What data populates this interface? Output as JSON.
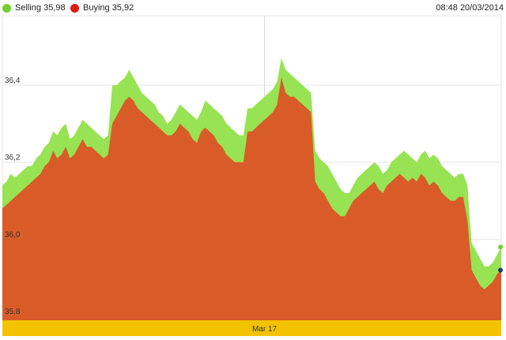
{
  "header": {
    "selling_label": "Selling 35,98",
    "buying_label": "Buying 35,92",
    "timestamp": "08:48 20/03/2014"
  },
  "colors": {
    "selling": "#97e353",
    "buying": "#d95c28",
    "selling_dot": "#6fd12f",
    "buying_dot": "#e01a10",
    "band": "#f3c300",
    "grid": "#e6e6e6",
    "last_selling_marker": "#6fd12f",
    "last_buying_marker": "#1f3a7a"
  },
  "chart_data": {
    "type": "area",
    "title": "",
    "xlabel": "",
    "ylabel": "",
    "ylim": [
      35.79,
      36.58
    ],
    "y_ticks": [
      35.8,
      36.0,
      36.2,
      36.4
    ],
    "y_tick_labels": [
      "35,8",
      "36,0",
      "36,2",
      "36,4"
    ],
    "x_band_labels": [
      "Mar 17"
    ],
    "x_band_label_index": 62,
    "grid": true,
    "legend_position": "top-left",
    "series": [
      {
        "name": "Selling",
        "values": [
          36.14,
          36.15,
          36.17,
          36.16,
          36.17,
          36.18,
          36.19,
          36.19,
          36.21,
          36.22,
          36.24,
          36.25,
          36.28,
          36.27,
          36.29,
          36.3,
          36.26,
          36.27,
          36.29,
          36.31,
          36.3,
          36.29,
          36.28,
          36.27,
          36.26,
          36.27,
          36.4,
          36.4,
          36.41,
          36.42,
          36.44,
          36.42,
          36.4,
          36.38,
          36.37,
          36.36,
          36.35,
          36.33,
          36.32,
          36.3,
          36.31,
          36.33,
          36.35,
          36.34,
          36.33,
          36.32,
          36.31,
          36.33,
          36.36,
          36.35,
          36.34,
          36.33,
          36.32,
          36.3,
          36.29,
          36.28,
          36.27,
          36.27,
          36.34,
          36.34,
          36.35,
          36.36,
          36.37,
          36.38,
          36.39,
          36.41,
          36.47,
          36.44,
          36.43,
          36.42,
          36.41,
          36.4,
          36.39,
          36.38,
          36.23,
          36.21,
          36.2,
          36.19,
          36.17,
          36.15,
          36.13,
          36.12,
          36.12,
          36.14,
          36.16,
          36.17,
          36.18,
          36.19,
          36.2,
          36.19,
          36.17,
          36.18,
          36.2,
          36.21,
          36.22,
          36.23,
          36.22,
          36.21,
          36.2,
          36.22,
          36.23,
          36.21,
          36.22,
          36.21,
          36.19,
          36.18,
          36.17,
          36.16,
          36.17,
          36.17,
          36.14,
          35.99,
          35.97,
          35.95,
          35.93,
          35.93,
          35.94,
          35.96,
          35.98
        ]
      },
      {
        "name": "Buying",
        "values": [
          36.08,
          36.09,
          36.1,
          36.11,
          36.12,
          36.13,
          36.14,
          36.15,
          36.16,
          36.17,
          36.19,
          36.2,
          36.23,
          36.21,
          36.22,
          36.24,
          36.21,
          36.22,
          36.24,
          36.26,
          36.24,
          36.24,
          36.23,
          36.22,
          36.21,
          36.22,
          36.3,
          36.32,
          36.34,
          36.36,
          36.37,
          36.36,
          36.34,
          36.33,
          36.32,
          36.31,
          36.3,
          36.29,
          36.28,
          36.27,
          36.27,
          36.28,
          36.3,
          36.29,
          36.28,
          36.26,
          36.25,
          36.28,
          36.29,
          36.28,
          36.27,
          36.25,
          36.24,
          36.22,
          36.21,
          36.2,
          36.2,
          36.2,
          36.28,
          36.28,
          36.29,
          36.3,
          36.31,
          36.32,
          36.33,
          36.35,
          36.42,
          36.38,
          36.37,
          36.37,
          36.36,
          36.35,
          36.34,
          36.33,
          36.15,
          36.13,
          36.12,
          36.1,
          36.08,
          36.07,
          36.06,
          36.06,
          36.08,
          36.1,
          36.11,
          36.12,
          36.13,
          36.14,
          36.15,
          36.13,
          36.12,
          36.14,
          36.15,
          36.16,
          36.17,
          36.16,
          36.15,
          36.16,
          36.15,
          36.17,
          36.16,
          36.14,
          36.15,
          36.14,
          36.12,
          36.11,
          36.1,
          36.1,
          36.11,
          36.11,
          36.05,
          35.92,
          35.9,
          35.88,
          35.87,
          35.88,
          35.89,
          35.91,
          35.92
        ]
      }
    ]
  }
}
